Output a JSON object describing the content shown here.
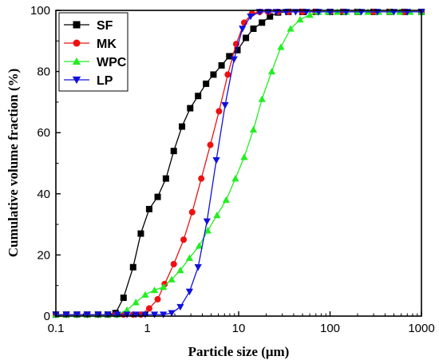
{
  "chart_data": {
    "type": "scatter",
    "xlabel": "Particle size (μm)",
    "ylabel": "Cumulative  volume  fraction (%)",
    "xscale": "log",
    "xlim": [
      0.1,
      1000
    ],
    "ylim": [
      0,
      100
    ],
    "x_ticks": [
      0.1,
      1,
      10,
      100,
      1000
    ],
    "x_tick_labels": [
      "0.1",
      "1",
      "10",
      "100",
      "1000"
    ],
    "y_ticks": [
      0,
      20,
      40,
      60,
      80,
      100
    ],
    "y_tick_labels": [
      "0",
      "20",
      "40",
      "60",
      "80",
      "100"
    ],
    "grid": false,
    "legend": "top-left",
    "series": [
      {
        "name": "SF",
        "color": "#000000",
        "marker": "square",
        "x": [
          0.1,
          0.13,
          0.17,
          0.22,
          0.29,
          0.37,
          0.45,
          0.55,
          0.7,
          0.85,
          1.05,
          1.3,
          1.6,
          1.95,
          2.4,
          2.95,
          3.6,
          4.4,
          5.3,
          6.5,
          7.9,
          9.7,
          12,
          14.5,
          18,
          22,
          27,
          35,
          50,
          70,
          100,
          140,
          200,
          300,
          450,
          650,
          1000
        ],
        "y": [
          0.5,
          0.5,
          0.5,
          0.5,
          0.5,
          0.5,
          1,
          6,
          16,
          27,
          35,
          39,
          45,
          54,
          62,
          68,
          72,
          76,
          79,
          82,
          85,
          87,
          91,
          94,
          96,
          98,
          99.3,
          99.5,
          99.5,
          99.5,
          99.5,
          99.5,
          99.5,
          99.5,
          99.5,
          99.5,
          99.5
        ]
      },
      {
        "name": "MK",
        "color": "#ee1111",
        "marker": "circle",
        "x": [
          0.1,
          0.13,
          0.17,
          0.22,
          0.29,
          0.37,
          0.45,
          0.55,
          0.7,
          0.85,
          1.05,
          1.3,
          1.55,
          1.95,
          2.5,
          3.1,
          3.9,
          4.9,
          6.1,
          7.6,
          9.4,
          11.5,
          14,
          17,
          21,
          27,
          35,
          50,
          70,
          100,
          140,
          200,
          300,
          450,
          650,
          1000
        ],
        "y": [
          0.5,
          0.5,
          0.5,
          0.5,
          0.5,
          0.5,
          0.5,
          0.5,
          0.5,
          0.5,
          2.5,
          5.5,
          10.5,
          17,
          25,
          34,
          45,
          56,
          67,
          79,
          89,
          96,
          99,
          99.5,
          99.5,
          99.5,
          99.5,
          99.5,
          99.5,
          99.5,
          99.5,
          99.5,
          99.5,
          99.5,
          99.5,
          99.5
        ]
      },
      {
        "name": "WPC",
        "color": "#22ee22",
        "marker": "triangle-up",
        "x": [
          0.1,
          0.13,
          0.17,
          0.22,
          0.29,
          0.37,
          0.47,
          0.6,
          0.75,
          0.95,
          1.2,
          1.5,
          1.85,
          2.3,
          2.9,
          3.7,
          4.6,
          5.8,
          7.3,
          9.2,
          11.5,
          14.5,
          18,
          23,
          29,
          37,
          47,
          60,
          75,
          95,
          120,
          150,
          200,
          260,
          340,
          450,
          580,
          750,
          1000
        ],
        "y": [
          0.5,
          0.5,
          0.5,
          0.5,
          0.5,
          0.5,
          0.5,
          2,
          4.5,
          7,
          8.5,
          9.5,
          12,
          15,
          19,
          23,
          28,
          33,
          38,
          45,
          52,
          61,
          71,
          80,
          88,
          94,
          97,
          98.5,
          99.5,
          99.5,
          99.5,
          99.5,
          99.5,
          99.5,
          99.5,
          99.5,
          99.5,
          99.5,
          99.5
        ]
      },
      {
        "name": "LP",
        "color": "#1010dd",
        "marker": "triangle-down",
        "x": [
          0.1,
          0.13,
          0.17,
          0.22,
          0.29,
          0.37,
          0.47,
          0.6,
          0.75,
          0.95,
          1.2,
          1.5,
          1.85,
          2.3,
          2.9,
          3.6,
          4.5,
          5.7,
          7.1,
          8.9,
          11,
          13.5,
          17,
          21,
          26,
          33,
          42,
          55,
          75,
          100,
          150,
          220,
          330,
          500,
          700,
          1000
        ],
        "y": [
          0.5,
          0.5,
          0.5,
          0.5,
          0.5,
          0.5,
          0.5,
          0.5,
          0.5,
          0.5,
          0.5,
          0.5,
          1,
          3,
          8,
          16,
          31,
          51,
          69,
          84,
          94,
          98,
          99.5,
          99.5,
          99.5,
          99.5,
          99.5,
          99.5,
          99.5,
          99.5,
          99.5,
          99.5,
          99.5,
          99.5,
          99.5,
          99.5
        ]
      }
    ]
  }
}
